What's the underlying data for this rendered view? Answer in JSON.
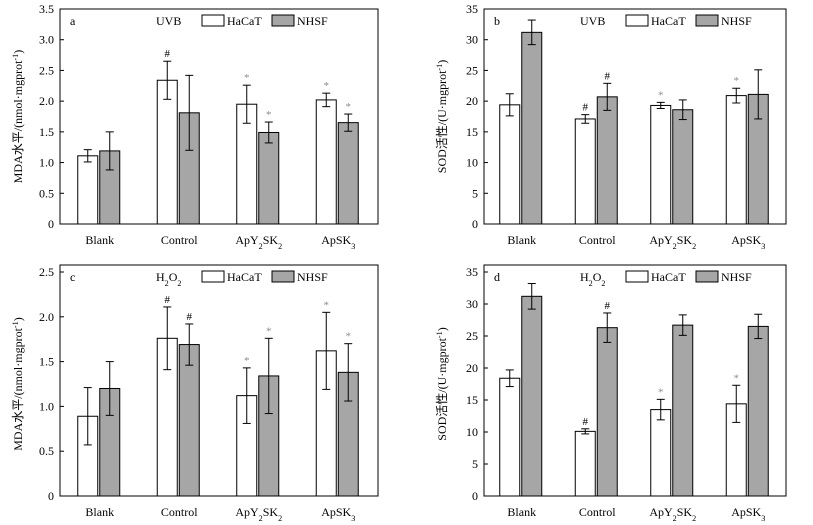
{
  "chart_data": [
    {
      "type": "bar",
      "panel": "a",
      "condition": "UVB",
      "ylabel": "MDA水平/(nmol·mgprot⁻¹)",
      "ylim": [
        0,
        3.5
      ],
      "yticks": [
        "0",
        "0.5",
        "1.0",
        "1.5",
        "2.0",
        "2.5",
        "3.0",
        "3.5"
      ],
      "categories": [
        "Blank",
        "Control",
        "ApY₂SK₂",
        "ApSK₃"
      ],
      "series": [
        {
          "name": "HaCaT",
          "color": "#ffffff",
          "values": [
            1.11,
            2.34,
            1.95,
            2.02
          ],
          "errors": [
            0.1,
            0.31,
            0.31,
            0.11
          ],
          "marks": [
            "",
            "#",
            "*",
            "*"
          ]
        },
        {
          "name": "NHSF",
          "color": "#a6a6a6",
          "values": [
            1.19,
            1.81,
            1.49,
            1.65
          ],
          "errors": [
            0.31,
            0.61,
            0.17,
            0.14
          ],
          "marks": [
            "",
            "",
            "*",
            "*"
          ]
        }
      ],
      "legend": "top-right"
    },
    {
      "type": "bar",
      "panel": "b",
      "condition": "UVB",
      "ylabel": "SOD活性/(U·mgprot⁻¹)",
      "ylim": [
        0,
        35
      ],
      "yticks": [
        "0",
        "5",
        "10",
        "15",
        "20",
        "25",
        "30",
        "35"
      ],
      "categories": [
        "Blank",
        "Control",
        "ApY₂SK₂",
        "ApSK₃"
      ],
      "series": [
        {
          "name": "HaCaT",
          "color": "#ffffff",
          "values": [
            19.4,
            17.1,
            19.3,
            20.9
          ],
          "errors": [
            1.8,
            0.7,
            0.5,
            1.2
          ],
          "marks": [
            "",
            "#",
            "*",
            "*"
          ]
        },
        {
          "name": "NHSF",
          "color": "#a6a6a6",
          "values": [
            31.2,
            20.7,
            18.6,
            21.1
          ],
          "errors": [
            2.0,
            2.2,
            1.6,
            4.0
          ],
          "marks": [
            "",
            "#",
            "",
            ""
          ]
        }
      ],
      "legend": "top-right"
    },
    {
      "type": "bar",
      "panel": "c",
      "condition": "H₂O₂",
      "ylabel": "MDA水平/(nmol·mgprot⁻¹)",
      "ylim": [
        0,
        2.5
      ],
      "yticks": [
        "0",
        "0.5",
        "1.0",
        "1.5",
        "2.0",
        "2.5"
      ],
      "categories": [
        "Blank",
        "Control",
        "ApY₂SK₂",
        "ApSK₃"
      ],
      "series": [
        {
          "name": "HaCaT",
          "color": "#ffffff",
          "values": [
            0.89,
            1.76,
            1.12,
            1.62
          ],
          "errors": [
            0.32,
            0.35,
            0.31,
            0.43
          ],
          "marks": [
            "",
            "#",
            "*",
            "*"
          ]
        },
        {
          "name": "NHSF",
          "color": "#a6a6a6",
          "values": [
            1.2,
            1.69,
            1.34,
            1.38
          ],
          "errors": [
            0.3,
            0.23,
            0.42,
            0.32
          ],
          "marks": [
            "",
            "#",
            "*",
            "*"
          ]
        }
      ],
      "legend": "top-right"
    },
    {
      "type": "bar",
      "panel": "d",
      "condition": "H₂O₂",
      "ylabel": "SOD活性/(U·mgprot⁻¹)",
      "ylim": [
        0,
        35
      ],
      "yticks": [
        "0",
        "5",
        "10",
        "15",
        "20",
        "25",
        "30",
        "35"
      ],
      "categories": [
        "Blank",
        "Control",
        "ApY₂SK₂",
        "ApSK₃"
      ],
      "series": [
        {
          "name": "HaCaT",
          "color": "#ffffff",
          "values": [
            18.4,
            10.1,
            13.5,
            14.4
          ],
          "errors": [
            1.3,
            0.4,
            1.6,
            2.9
          ],
          "marks": [
            "",
            "#",
            "*",
            "*"
          ]
        },
        {
          "name": "NHSF",
          "color": "#a6a6a6",
          "values": [
            31.2,
            26.3,
            26.7,
            26.5
          ],
          "errors": [
            2.0,
            2.3,
            1.6,
            1.9
          ],
          "marks": [
            "",
            "#",
            "",
            ""
          ]
        }
      ],
      "legend": "top-right"
    }
  ]
}
